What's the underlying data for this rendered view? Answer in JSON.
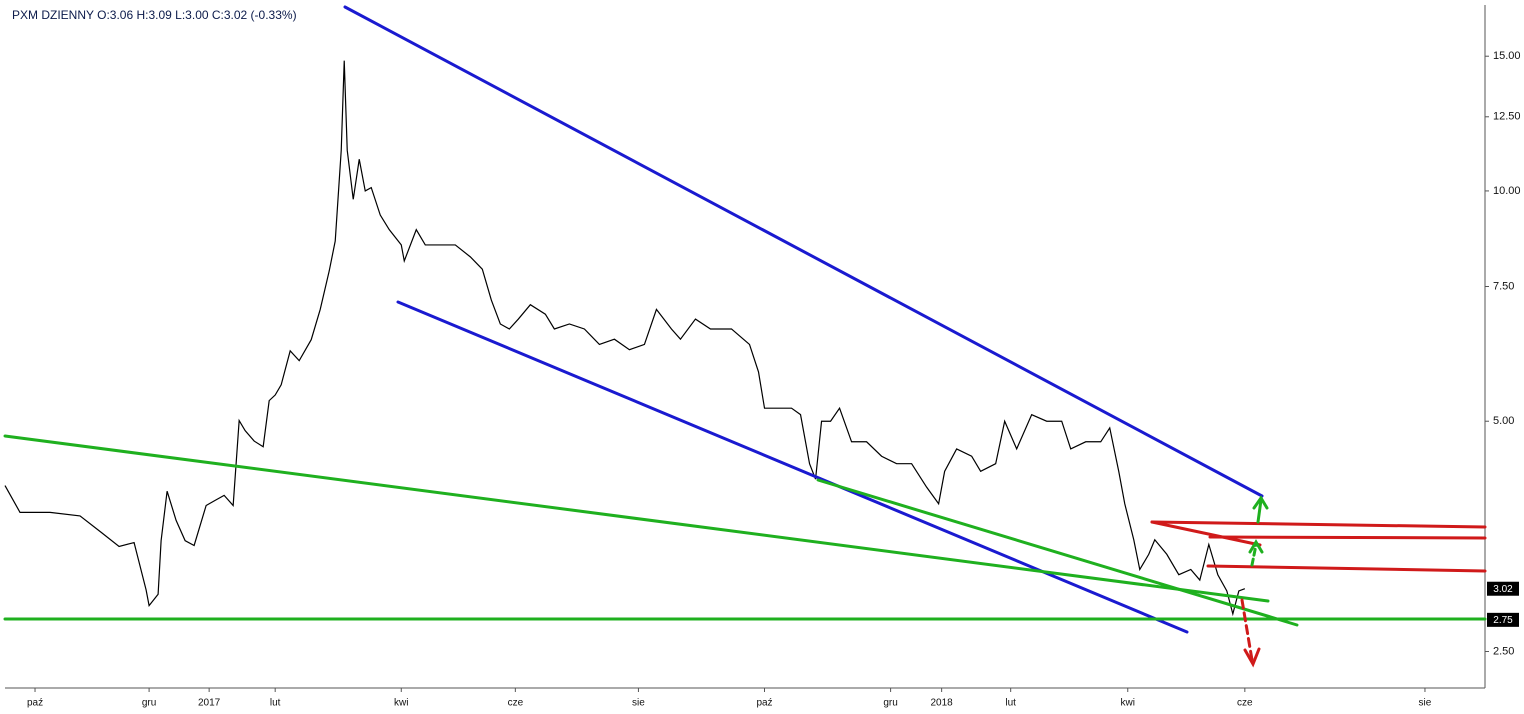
{
  "chart_data": {
    "type": "line",
    "title": "PXM  DZIENNY  O:3.06  H:3.09  L:3.00  C:3.02  (-0.33%)",
    "log_scale": true,
    "series": [
      {
        "color": "#000000",
        "x": [
          0,
          5,
          15,
          25,
          32,
          38,
          43,
          47,
          48,
          51,
          52,
          54,
          57,
          60,
          63,
          67,
          70,
          73,
          76,
          78,
          80,
          83,
          86,
          88,
          90,
          92,
          95,
          98,
          102,
          105,
          108,
          110,
          112,
          113,
          114,
          116,
          118,
          120,
          122,
          125,
          128,
          132,
          133,
          137,
          140,
          145,
          150,
          155,
          159,
          162,
          165,
          168,
          171,
          175,
          180,
          183,
          188,
          193,
          198,
          203,
          208,
          213,
          217,
          222,
          225,
          230,
          235,
          242,
          248,
          251,
          253,
          257,
          262,
          265,
          268,
          270,
          272,
          275,
          278,
          282,
          287,
          292,
          297,
          302,
          307,
          311,
          313,
          317,
          322,
          325,
          330,
          333,
          337,
          342,
          347,
          352,
          355,
          360,
          365,
          368,
          371,
          373,
          376,
          378,
          381,
          383,
          387,
          391,
          395,
          398,
          401,
          404,
          407,
          409,
          411,
          413
        ],
        "values": [
          4.12,
          3.8,
          3.8,
          3.76,
          3.58,
          3.43,
          3.47,
          3.01,
          2.87,
          2.97,
          3.49,
          4.05,
          3.71,
          3.49,
          3.44,
          3.88,
          3.94,
          4.0,
          3.88,
          5.01,
          4.86,
          4.71,
          4.63,
          5.32,
          5.41,
          5.58,
          6.18,
          6.0,
          6.39,
          7.0,
          7.86,
          8.6,
          11.3,
          14.8,
          11.3,
          9.75,
          11.0,
          10.0,
          10.1,
          9.3,
          8.9,
          8.5,
          8.1,
          8.9,
          8.5,
          8.5,
          8.5,
          8.2,
          7.9,
          7.2,
          6.7,
          6.6,
          6.8,
          7.1,
          6.9,
          6.6,
          6.7,
          6.6,
          6.3,
          6.4,
          6.2,
          6.3,
          7.0,
          6.6,
          6.4,
          6.8,
          6.6,
          6.6,
          6.3,
          5.8,
          5.2,
          5.2,
          5.2,
          5.1,
          4.4,
          4.2,
          5.0,
          5.0,
          5.2,
          4.7,
          4.7,
          4.5,
          4.4,
          4.4,
          4.1,
          3.9,
          4.3,
          4.6,
          4.5,
          4.3,
          4.4,
          5.0,
          4.6,
          5.1,
          5.0,
          5.0,
          4.6,
          4.7,
          4.7,
          4.9,
          4.3,
          3.9,
          3.5,
          3.2,
          3.35,
          3.5,
          3.35,
          3.15,
          3.2,
          3.1,
          3.45,
          3.15,
          3.0,
          2.8,
          3.0,
          3.02
        ]
      }
    ],
    "xlim": [
      0,
      493
    ],
    "xticks": [
      {
        "value": 10,
        "label": "paź"
      },
      {
        "value": 48,
        "label": "gru"
      },
      {
        "value": 68,
        "label": "2017"
      },
      {
        "value": 90,
        "label": "lut"
      },
      {
        "value": 132,
        "label": "kwi"
      },
      {
        "value": 170,
        "label": "cze"
      },
      {
        "value": 211,
        "label": "sie"
      },
      {
        "value": 253,
        "label": "paź"
      },
      {
        "value": 295,
        "label": "gru"
      },
      {
        "value": 312,
        "label": "2018"
      },
      {
        "value": 335,
        "label": "lut"
      },
      {
        "value": 374,
        "label": "kwi"
      },
      {
        "value": 413,
        "label": "cze"
      },
      {
        "value": 473,
        "label": "sie"
      }
    ],
    "ylim": [
      2.24,
      17.5
    ],
    "yticks": [
      {
        "value": 2.5,
        "label": "2.50"
      },
      {
        "value": 5,
        "label": "5.00"
      },
      {
        "value": 7.5,
        "label": "7.50"
      },
      {
        "value": 10,
        "label": "10.00"
      },
      {
        "value": 12.5,
        "label": "12.50"
      },
      {
        "value": 15,
        "label": "15.00"
      }
    ],
    "price_labels": [
      3.02,
      2.75
    ]
  }
}
